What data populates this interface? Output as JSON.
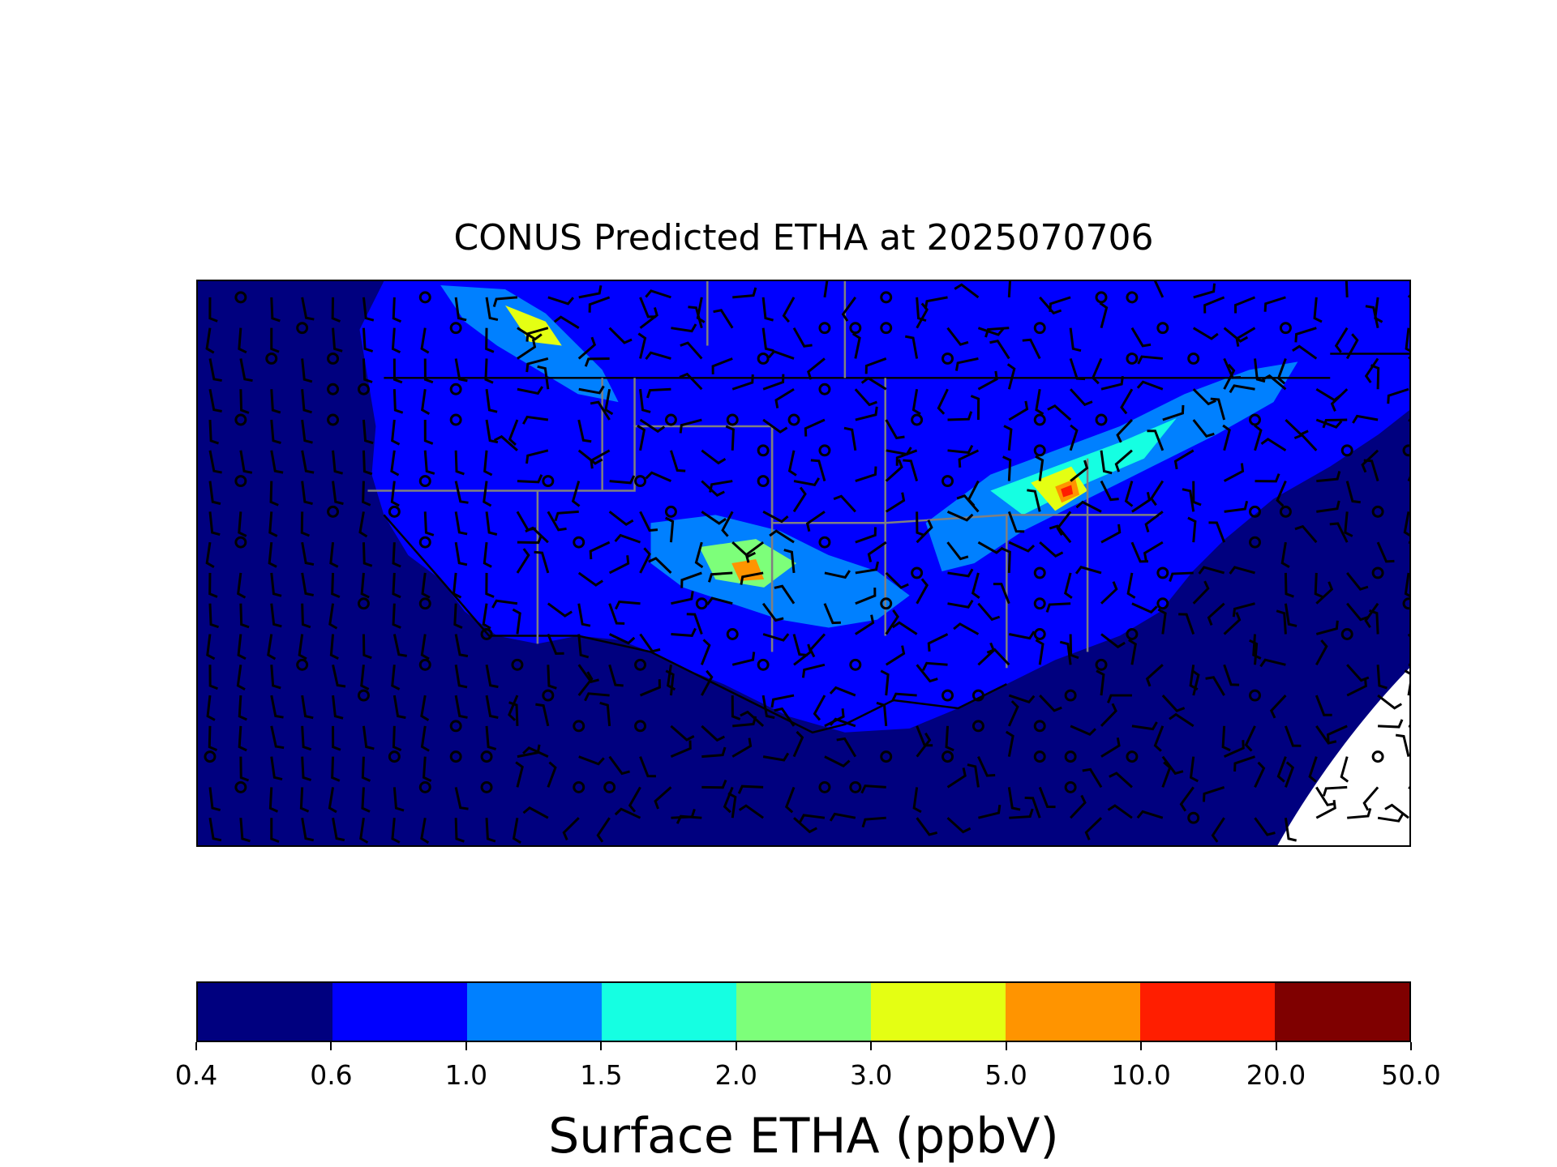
{
  "title": "CONUS Predicted ETHA at 2025070706",
  "colorbar": {
    "label": "Surface ETHA (ppbV)",
    "ticks": [
      "0.4",
      "0.6",
      "1.0",
      "1.5",
      "2.0",
      "3.0",
      "5.0",
      "10.0",
      "20.0",
      "50.0"
    ],
    "colors": [
      "#00007f",
      "#0000ff",
      "#0080ff",
      "#15ffe2",
      "#7dff7a",
      "#e4ff13",
      "#ff9400",
      "#ff1e00",
      "#7f0000"
    ]
  },
  "map": {
    "ocean_color": "#00007f",
    "land_color": "#0000ff",
    "boundary_color": "#000000",
    "state_line_color": "#808080",
    "missing_color": "#ffffff"
  }
}
